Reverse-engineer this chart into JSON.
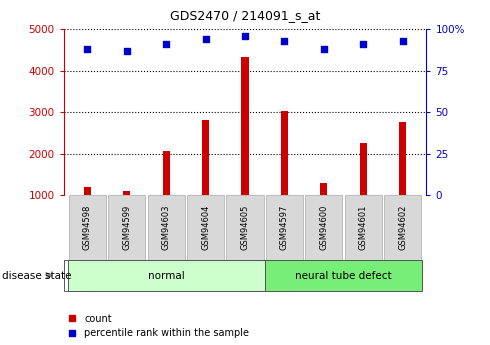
{
  "title": "GDS2470 / 214091_s_at",
  "categories": [
    "GSM94598",
    "GSM94599",
    "GSM94603",
    "GSM94604",
    "GSM94605",
    "GSM94597",
    "GSM94600",
    "GSM94601",
    "GSM94602"
  ],
  "counts": [
    1200,
    1100,
    2050,
    2820,
    4320,
    3020,
    1300,
    2250,
    2770
  ],
  "percentiles": [
    88,
    87,
    91,
    94,
    96,
    93,
    88,
    91,
    93
  ],
  "bar_color": "#cc0000",
  "dot_color": "#0000cc",
  "groups": [
    {
      "label": "normal",
      "indices": [
        0,
        1,
        2,
        3,
        4
      ],
      "color": "#ccffcc"
    },
    {
      "label": "neural tube defect",
      "indices": [
        5,
        6,
        7,
        8
      ],
      "color": "#77ee77"
    }
  ],
  "ylim_left": [
    1000,
    5000
  ],
  "ylim_right": [
    0,
    100
  ],
  "yticks_left": [
    1000,
    2000,
    3000,
    4000,
    5000
  ],
  "yticks_right": [
    0,
    25,
    50,
    75,
    100
  ],
  "ytick_labels_right": [
    "0",
    "25",
    "50",
    "75",
    "100%"
  ],
  "left_axis_color": "#cc0000",
  "right_axis_color": "#0000cc",
  "tick_label_bg": "#d8d8d8",
  "disease_state_label": "disease state",
  "legend_count_label": "count",
  "legend_pct_label": "percentile rank within the sample"
}
